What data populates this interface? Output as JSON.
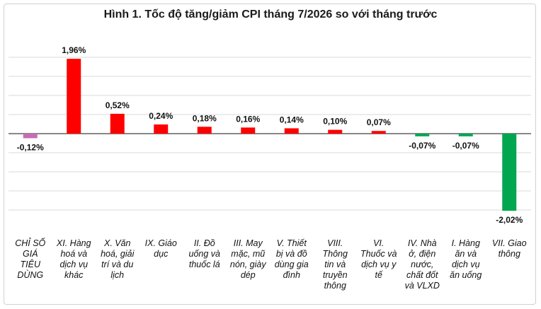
{
  "chart_data": {
    "type": "bar",
    "title": "Hình 1. Tốc độ tăng/giảm CPI tháng 7/2026 so với tháng trước",
    "categories": [
      "CHỈ SỐ GIÁ TIÊU DÙNG",
      "XI. Hàng hoá và dịch vụ khác",
      "X. Văn hoá, giải trí và du lịch",
      "IX. Giáo dục",
      "II. Đồ uống và thuốc lá",
      "III. May mặc, mũ nón, giày dép",
      "V. Thiết bị và đồ dùng gia đình",
      "VIII. Thông tin và truyền thông",
      "VI. Thuốc và dịch vụ y tế",
      "IV. Nhà ở, điện nước, chất đốt và VLXD",
      "I. Hàng ăn và dịch vụ ăn uống",
      "VII. Giao thông"
    ],
    "category_lines": [
      "CHỈ SỐ\nGIÁ\nTIÊU\nDÙNG",
      "XI. Hàng\nhoá và\ndịch vụ\nkhác",
      "X. Văn\nhoá, giải\ntrí và du\nlịch",
      "IX. Giáo\ndục",
      "II. Đồ\nuống và\nthuốc lá",
      "III. May\nmặc, mũ\nnón, giày\ndép",
      "V. Thiết\nbị và đồ\ndùng gia\nđình",
      "VIII.\nThông\ntin và\ntruyền\nthông",
      "VI.\nThuốc và\ndịch vụ y\ntế",
      "IV. Nhà\nở, điện\nnước,\nchất đốt\nvà VLXD",
      "I. Hàng\năn và\ndịch vụ\năn uống",
      "VII. Giao\nthông"
    ],
    "values": [
      -0.12,
      1.96,
      0.52,
      0.24,
      0.18,
      0.16,
      0.14,
      0.1,
      0.07,
      -0.07,
      -0.07,
      -2.02
    ],
    "labels": [
      "-0,12%",
      "1,96%",
      "0,52%",
      "0,24%",
      "0,18%",
      "0,16%",
      "0,14%",
      "0,10%",
      "0,07%",
      "-0,07%",
      "-0,07%",
      "-2,02%"
    ],
    "colors": [
      "#c86cb4",
      "#ff0000",
      "#ff0000",
      "#ff0000",
      "#ff0000",
      "#ff0000",
      "#ff0000",
      "#ff0000",
      "#ff0000",
      "#00a650",
      "#00a650",
      "#00a650"
    ],
    "ylim": [
      -2.5,
      2.5
    ],
    "gridlines": true,
    "gridline_color": "#d9d9d9",
    "axis_color": "#404040"
  }
}
